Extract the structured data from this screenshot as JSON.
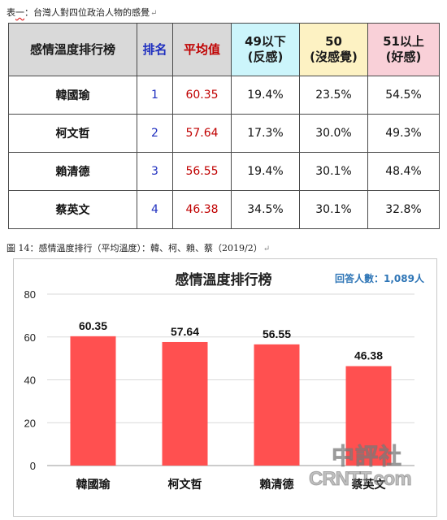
{
  "table_caption": {
    "prefix": "表",
    "wavy": "一",
    "text": "：台灣人對四位政治人物的感覺"
  },
  "table": {
    "headers": {
      "title": "感情溫度排行榜",
      "rank": "排名",
      "avg": "平均值",
      "neg_line1": "49以下",
      "neg_line2": "(反感)",
      "mid_line1": "50",
      "mid_line2": "(沒感覺)",
      "pos_line1": "51以上",
      "pos_line2": "(好感)"
    },
    "rows": [
      {
        "name": "韓國瑜",
        "rank": "1",
        "avg": "60.35",
        "neg": "19.4%",
        "mid": "23.5%",
        "pos": "54.5%"
      },
      {
        "name": "柯文哲",
        "rank": "2",
        "avg": "57.64",
        "neg": "17.3%",
        "mid": "30.0%",
        "pos": "49.3%"
      },
      {
        "name": "賴清德",
        "rank": "3",
        "avg": "56.55",
        "neg": "19.4%",
        "mid": "30.1%",
        "pos": "48.4%"
      },
      {
        "name": "蔡英文",
        "rank": "4",
        "avg": "46.38",
        "neg": "34.5%",
        "mid": "30.1%",
        "pos": "32.8%"
      }
    ]
  },
  "figure_caption": "圖 14：感情溫度排行（平均溫度）：韓、柯、賴、蔡（2019/2）",
  "chart_data": {
    "type": "bar",
    "title": "感情溫度排行榜",
    "note": "回答人數：1,089人",
    "categories": [
      "韓國瑜",
      "柯文哲",
      "賴清德",
      "蔡英文"
    ],
    "values": [
      60.35,
      57.64,
      56.55,
      46.38
    ],
    "value_labels": [
      "60.35",
      "57.64",
      "56.55",
      "46.38"
    ],
    "ylim": [
      0,
      80
    ],
    "yticks": [
      "0",
      "20",
      "40",
      "60",
      "80"
    ],
    "grid": true,
    "bar_color": "#ff5050",
    "xlabel": "",
    "ylabel": ""
  },
  "watermark": {
    "cn": "中評社",
    "en": "CRNTT.com"
  }
}
